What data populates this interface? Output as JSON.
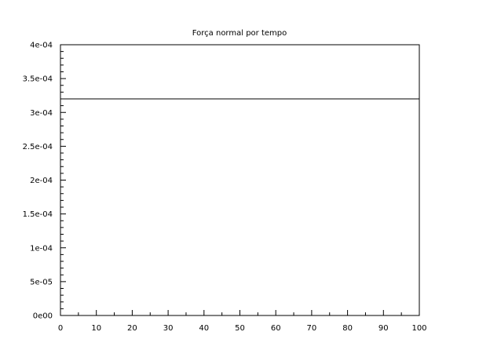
{
  "chart_data": {
    "type": "line",
    "title": "Força normal por tempo",
    "xlabel": "",
    "ylabel": "",
    "xlim": [
      0,
      100
    ],
    "ylim": [
      0,
      0.0004
    ],
    "x_ticks": [
      0,
      10,
      20,
      30,
      40,
      50,
      60,
      70,
      80,
      90,
      100
    ],
    "x_tick_labels": [
      "0",
      "10",
      "20",
      "30",
      "40",
      "50",
      "60",
      "70",
      "80",
      "90",
      "100"
    ],
    "y_ticks": [
      0,
      5e-05,
      0.0001,
      0.00015,
      0.0002,
      0.00025,
      0.0003,
      0.00035,
      0.0004
    ],
    "y_tick_labels": [
      "0e00",
      "5e-05",
      "1e-04",
      "1.5e-04",
      "2e-04",
      "2.5e-04",
      "3e-04",
      "3.5e-04",
      "4e-04"
    ],
    "grid": false,
    "legend": "none",
    "series": [
      {
        "x": [
          0,
          100
        ],
        "y": [
          0.00032,
          0.00032
        ],
        "color": "#000000"
      }
    ]
  }
}
